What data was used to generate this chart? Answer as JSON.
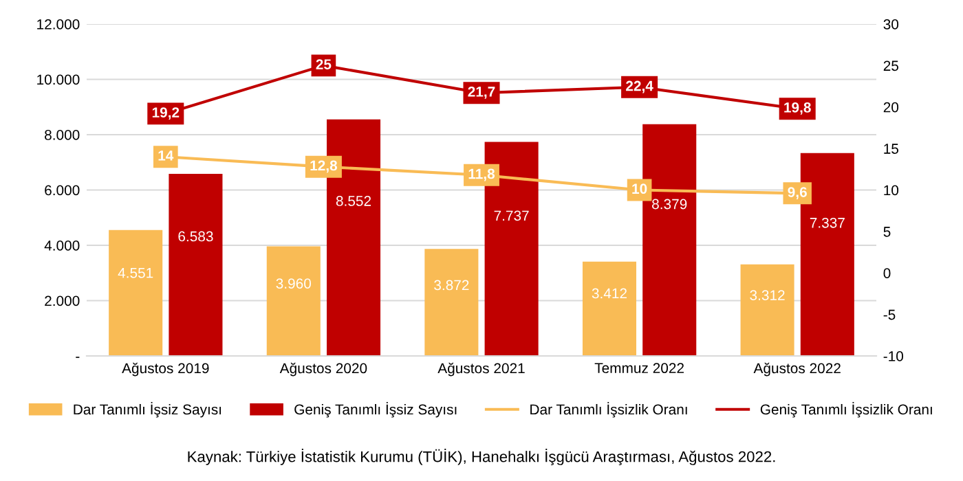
{
  "chart_data": {
    "type": "bar",
    "categories": [
      "Ağustos 2019",
      "Ağustos 2020",
      "Ağustos 2021",
      "Temmuz 2022",
      "Ağustos 2022"
    ],
    "series": [
      {
        "name": "Dar Tanımlı İşsiz Sayısı",
        "color": "#f9bb55",
        "values": [
          4551,
          3960,
          3872,
          3412,
          3312
        ],
        "value_labels": [
          "4.551",
          "3.960",
          "3.872",
          "3.412",
          "3.312"
        ]
      },
      {
        "name": "Geniş Tanımlı İşsiz Sayısı",
        "color": "#c00000",
        "values": [
          6583,
          8552,
          7737,
          8379,
          7337
        ],
        "value_labels": [
          "6.583",
          "8.552",
          "7.737",
          "8.379",
          "7.337"
        ]
      },
      {
        "name": "Dar Tanımlı İşsizlik Oranı",
        "type": "line",
        "axis": "y2",
        "color": "#f9bb55",
        "values": [
          14,
          12.8,
          11.8,
          10,
          9.6
        ],
        "value_labels": [
          "14",
          "12,8",
          "11,8",
          "10",
          "9,6"
        ]
      },
      {
        "name": "Geniş Tanımlı İşsizlik Oranı",
        "type": "line",
        "axis": "y2",
        "color": "#c00000",
        "values": [
          19.2,
          25,
          21.7,
          22.4,
          19.8
        ],
        "value_labels": [
          "19,2",
          "25",
          "21,7",
          "22,4",
          "19,8"
        ]
      }
    ],
    "ylim": [
      0,
      12000
    ],
    "yticks": [
      {
        "value": 0,
        "label": "-"
      },
      {
        "value": 2000,
        "label": "2.000"
      },
      {
        "value": 4000,
        "label": "4.000"
      },
      {
        "value": 6000,
        "label": "6.000"
      },
      {
        "value": 8000,
        "label": "8.000"
      },
      {
        "value": 10000,
        "label": "10.000"
      },
      {
        "value": 12000,
        "label": "12.000"
      }
    ],
    "y2lim": [
      -10,
      30
    ],
    "y2ticks": [
      -10,
      -5,
      0,
      5,
      10,
      15,
      20,
      25,
      30
    ],
    "grid": "y",
    "legend": "bottom",
    "marker": "square",
    "line_style": "solid",
    "annotations": [
      "Kaynak: Türkiye İstatistik Kurumu (TÜİK), Hanehalkı İşgücü Araştırması, Ağustos 2022."
    ]
  }
}
